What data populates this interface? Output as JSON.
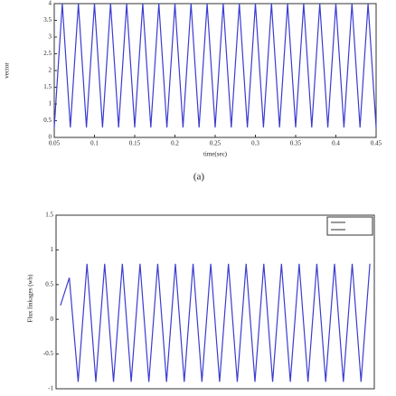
{
  "chart_data": [
    {
      "type": "line",
      "ylabel": "vector",
      "xlabel": "time(sec)",
      "caption": "(a)",
      "x": [
        0.05,
        0.06,
        0.07,
        0.08,
        0.09,
        0.1,
        0.11,
        0.12,
        0.13,
        0.14,
        0.15,
        0.16,
        0.17,
        0.18,
        0.19,
        0.2,
        0.21,
        0.22,
        0.23,
        0.24,
        0.25,
        0.26,
        0.27,
        0.28,
        0.29,
        0.3,
        0.31,
        0.32,
        0.33,
        0.34,
        0.35,
        0.36,
        0.37,
        0.38,
        0.39,
        0.4,
        0.41,
        0.42,
        0.43,
        0.44,
        0.45
      ],
      "series": [
        {
          "color": "#3b3bd0",
          "values": [
            0.3,
            4,
            0.3,
            4,
            0.3,
            4,
            0.3,
            4,
            0.3,
            4,
            0.3,
            4,
            0.3,
            4,
            0.3,
            4,
            0.3,
            4,
            0.3,
            4,
            0.3,
            4,
            0.3,
            4,
            0.3,
            4,
            0.3,
            4,
            0.3,
            4,
            0.3,
            4,
            0.3,
            4,
            0.3,
            4,
            0.3,
            4,
            0.3,
            4,
            0.3
          ]
        }
      ],
      "xlim": [
        0.05,
        0.45
      ],
      "xticks": [
        0.05,
        0.1,
        0.15,
        0.2,
        0.25,
        0.3,
        0.35,
        0.4,
        0.45
      ],
      "ylim": [
        0,
        4
      ],
      "yticks": [
        0,
        0.5,
        1,
        1.5,
        2,
        2.5,
        3,
        3.5,
        4
      ]
    },
    {
      "type": "line",
      "ylabel": "Flux linkages (wb)",
      "series": [
        {
          "color": "#3b3bd0",
          "values": [
            0.2,
            0.6,
            -0.9,
            0.8,
            -0.9,
            0.8,
            -0.9,
            0.8,
            -0.9,
            0.8,
            -0.9,
            0.8,
            -0.9,
            0.8,
            -0.9,
            0.8,
            -0.9,
            0.8,
            -0.9,
            0.8,
            -0.9,
            0.8,
            -0.9,
            0.8,
            -0.9,
            0.8,
            -0.9,
            0.8,
            -0.9,
            0.8,
            -0.9,
            0.8,
            -0.9,
            0.8,
            -0.9,
            0.8
          ]
        }
      ],
      "ylim": [
        -1,
        1.5
      ],
      "yticks": [
        -1,
        -0.5,
        0,
        0.5,
        1,
        1.5
      ]
    }
  ]
}
